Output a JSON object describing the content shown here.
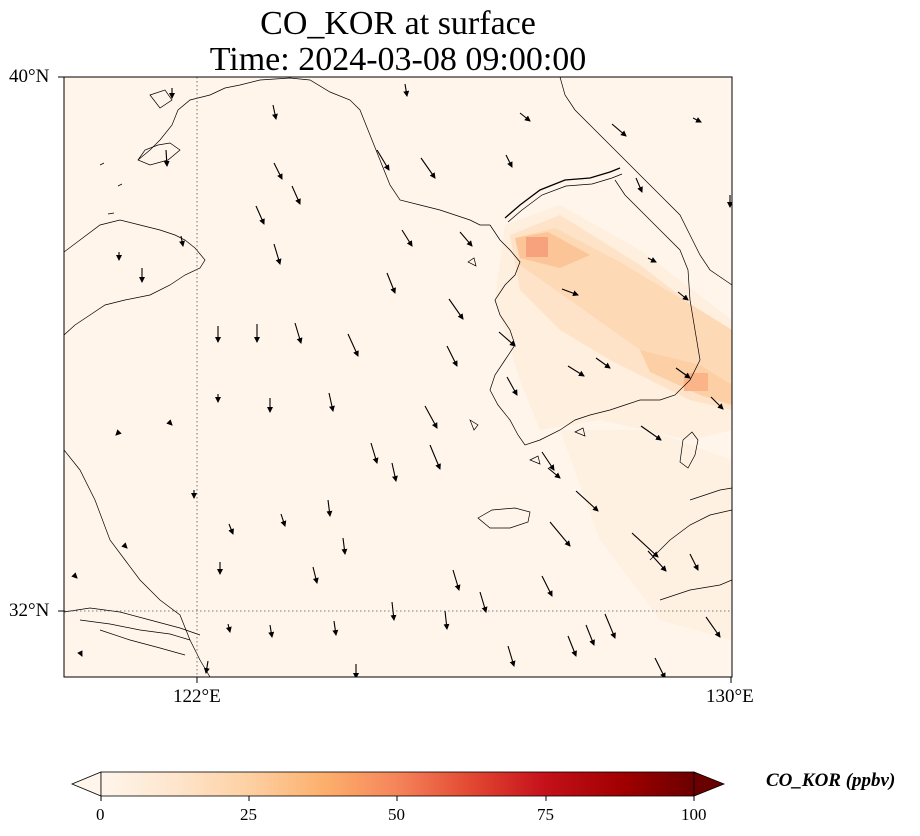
{
  "title": {
    "line1": "CO_KOR at surface",
    "line2": "Time: 2024-03-08 09:00:00"
  },
  "map": {
    "lat_labels": [
      "40°N",
      "32°N"
    ],
    "lon_labels": [
      "122°E",
      "130°E"
    ],
    "lat_range": [
      31,
      40
    ],
    "lon_range": [
      120,
      130
    ],
    "gridlines": {
      "lats": [
        32
      ],
      "lons": [
        122
      ],
      "style": "dotted"
    },
    "background_color": "#fff5eb",
    "coastline_color": "#000000"
  },
  "colorbar": {
    "title": "CO_KOR (ppbv)",
    "ticks": [
      "0",
      "25",
      "50",
      "75",
      "100"
    ],
    "range": [
      0,
      100
    ],
    "colormap": "Oranges-to-dark-red",
    "extend": "both"
  },
  "wind_vectors": {
    "shown": true,
    "color": "#000000"
  }
}
